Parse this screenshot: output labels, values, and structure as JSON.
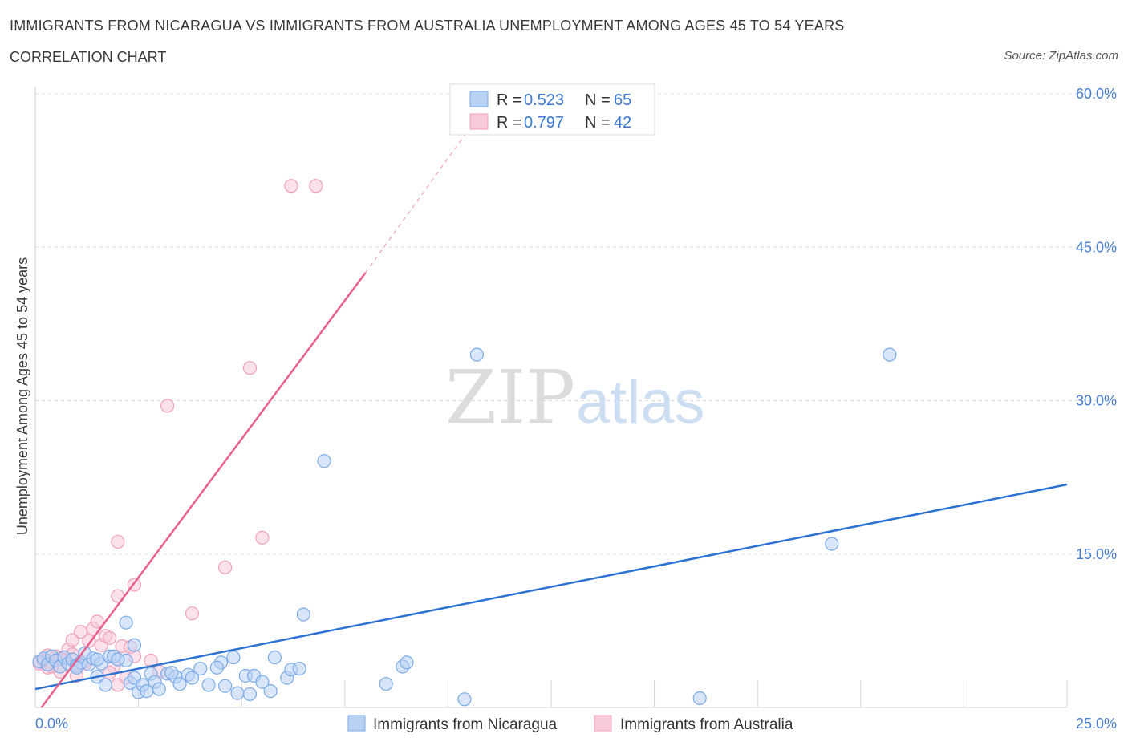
{
  "chart_data": {
    "type": "scatter",
    "title": "IMMIGRANTS FROM NICARAGUA VS IMMIGRANTS FROM AUSTRALIA UNEMPLOYMENT AMONG AGES 45 TO 54 YEARS",
    "subtitle": "CORRELATION CHART",
    "source": "Source: ZipAtlas.com",
    "watermark": "ZIPatlas",
    "xlabel": "",
    "ylabel": "Unemployment Among Ages 45 to 54 years",
    "xlim": [
      0,
      25
    ],
    "ylim": [
      0,
      60
    ],
    "x_tick_labels": [
      "0.0%",
      "25.0%"
    ],
    "y_ticks": [
      15,
      30,
      45,
      60
    ],
    "y_tick_labels": [
      "15.0%",
      "30.0%",
      "45.0%",
      "60.0%"
    ],
    "grid": true,
    "legend": [
      {
        "r_label": "R = ",
        "r_value": "0.523",
        "n_label": "N = ",
        "n_value": "65"
      },
      {
        "r_label": "R = ",
        "r_value": "0.797",
        "n_label": "N = ",
        "n_value": "42"
      }
    ],
    "series": [
      {
        "name": "Immigrants from Nicaragua",
        "color": "#7aaae8",
        "fill": "#b9d2f4",
        "line_color": "#2b72d3",
        "trend": {
          "x": [
            0,
            25
          ],
          "y": [
            1.8,
            21.8
          ]
        },
        "points": [
          [
            0.1,
            4.5
          ],
          [
            0.2,
            4.8
          ],
          [
            0.3,
            4.2
          ],
          [
            0.4,
            5.0
          ],
          [
            0.5,
            4.6
          ],
          [
            0.6,
            4.0
          ],
          [
            0.7,
            4.9
          ],
          [
            0.8,
            4.3
          ],
          [
            0.9,
            4.7
          ],
          [
            1.0,
            4.1
          ],
          [
            1.1,
            4.4
          ],
          [
            1.2,
            5.3
          ],
          [
            1.3,
            4.2
          ],
          [
            1.4,
            4.8
          ],
          [
            1.5,
            3.0
          ],
          [
            1.6,
            4.3
          ],
          [
            1.7,
            2.2
          ],
          [
            1.8,
            5.0
          ],
          [
            2.2,
            4.6
          ],
          [
            2.3,
            2.4
          ],
          [
            2.4,
            2.9
          ],
          [
            2.5,
            1.5
          ],
          [
            2.6,
            2.2
          ],
          [
            2.7,
            1.6
          ],
          [
            2.8,
            3.3
          ],
          [
            2.9,
            2.5
          ],
          [
            3.0,
            1.8
          ],
          [
            3.2,
            3.3
          ],
          [
            3.4,
            3.0
          ],
          [
            3.5,
            2.3
          ],
          [
            3.7,
            3.2
          ],
          [
            4.0,
            3.8
          ],
          [
            4.2,
            2.2
          ],
          [
            4.5,
            4.4
          ],
          [
            4.6,
            2.1
          ],
          [
            4.8,
            4.9
          ],
          [
            4.9,
            1.4
          ],
          [
            5.1,
            3.1
          ],
          [
            5.3,
            3.1
          ],
          [
            5.5,
            2.5
          ],
          [
            5.8,
            4.9
          ],
          [
            6.1,
            2.9
          ],
          [
            6.2,
            3.7
          ],
          [
            6.4,
            3.8
          ],
          [
            6.5,
            9.1
          ],
          [
            7.0,
            24.1
          ],
          [
            8.5,
            2.3
          ],
          [
            8.9,
            4.0
          ],
          [
            9.0,
            4.4
          ],
          [
            10.4,
            0.8
          ],
          [
            10.7,
            34.5
          ],
          [
            16.1,
            0.9
          ],
          [
            19.3,
            16.0
          ],
          [
            20.7,
            34.5
          ],
          [
            2.2,
            8.3
          ],
          [
            2.4,
            6.1
          ],
          [
            1.9,
            5.0
          ],
          [
            1.0,
            3.9
          ],
          [
            3.3,
            3.4
          ],
          [
            5.7,
            1.6
          ],
          [
            5.2,
            1.3
          ],
          [
            3.8,
            2.9
          ],
          [
            2.0,
            4.7
          ],
          [
            4.4,
            3.9
          ],
          [
            1.5,
            4.7
          ]
        ]
      },
      {
        "name": "Immigrants from Australia",
        "color": "#f0a0bb",
        "fill": "#f8cad8",
        "line_color": "#e8608e",
        "trend": {
          "x": [
            0.15,
            8.0
          ],
          "y": [
            0,
            42.5
          ]
        },
        "trend_dash": {
          "x": [
            8.0,
            10.5
          ],
          "y": [
            42.5,
            56.5
          ]
        },
        "points": [
          [
            0.1,
            4.3
          ],
          [
            0.2,
            4.6
          ],
          [
            0.3,
            3.9
          ],
          [
            0.4,
            4.4
          ],
          [
            0.5,
            5.0
          ],
          [
            0.6,
            3.5
          ],
          [
            0.7,
            4.7
          ],
          [
            0.8,
            5.7
          ],
          [
            0.9,
            6.6
          ],
          [
            1.0,
            3.1
          ],
          [
            1.1,
            7.4
          ],
          [
            1.2,
            4.2
          ],
          [
            1.3,
            6.5
          ],
          [
            1.4,
            7.7
          ],
          [
            1.5,
            8.4
          ],
          [
            1.6,
            6.1
          ],
          [
            1.7,
            7.0
          ],
          [
            1.8,
            6.8
          ],
          [
            1.9,
            4.0
          ],
          [
            2.0,
            2.2
          ],
          [
            2.1,
            6.0
          ],
          [
            2.2,
            2.9
          ],
          [
            2.3,
            5.9
          ],
          [
            2.4,
            5.0
          ],
          [
            2.0,
            10.9
          ],
          [
            2.4,
            12.0
          ],
          [
            2.0,
            16.2
          ],
          [
            2.8,
            4.6
          ],
          [
            3.0,
            3.5
          ],
          [
            3.2,
            29.5
          ],
          [
            3.8,
            9.2
          ],
          [
            4.6,
            13.7
          ],
          [
            5.2,
            33.2
          ],
          [
            5.5,
            16.6
          ],
          [
            6.2,
            51.0
          ],
          [
            6.8,
            51.0
          ],
          [
            0.4,
            4.0
          ],
          [
            0.6,
            4.8
          ],
          [
            0.9,
            5.2
          ],
          [
            1.2,
            4.5
          ],
          [
            1.8,
            3.4
          ],
          [
            0.3,
            5.1
          ]
        ]
      }
    ]
  }
}
